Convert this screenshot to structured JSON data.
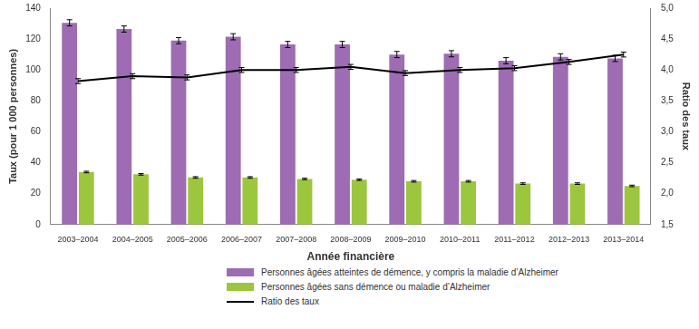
{
  "chart_data": {
    "type": "bar",
    "x_label": "Année financière",
    "y_label": "Taux (pour 1 000 personnes)",
    "y2_label": "Ratio des taux",
    "categories": [
      "2003–2004",
      "2004–2005",
      "2005–2006",
      "2006–2007",
      "2007–2008",
      "2008–2009",
      "2009–2010",
      "2010–2011",
      "2011–2012",
      "2012–2013",
      "2013–2014"
    ],
    "series": [
      {
        "name": "Personnes âgées atteintes de démence, y compris la maladie d’Alzheimer",
        "type": "bar",
        "color": "#9d6cb2",
        "values": [
          130.5,
          126.5,
          119,
          121.5,
          116.5,
          116.5,
          110,
          110.5,
          106,
          108.5,
          107.5
        ],
        "errors": [
          2,
          2,
          2,
          2,
          2,
          2,
          2,
          2,
          2,
          2,
          2
        ]
      },
      {
        "name": "Personnes âgées sans démence ou maladie d’Alzheimer",
        "type": "bar",
        "color": "#9cc63e",
        "values": [
          34,
          32.5,
          30.5,
          30.5,
          29.5,
          29,
          28,
          28,
          26.5,
          26.5,
          25
        ],
        "errors": [
          0.5,
          0.5,
          0.5,
          0.5,
          0.5,
          0.5,
          0.5,
          0.5,
          0.5,
          0.5,
          0.5
        ]
      },
      {
        "name": "Ratio des taux",
        "type": "line",
        "axis": "y2",
        "color": "#000000",
        "values": [
          3.82,
          3.9,
          3.88,
          4.0,
          4.0,
          4.05,
          3.95,
          4.0,
          4.03,
          4.13,
          4.25
        ],
        "errors": [
          0.04,
          0.04,
          0.04,
          0.04,
          0.04,
          0.04,
          0.04,
          0.04,
          0.04,
          0.04,
          0.04
        ]
      }
    ],
    "ylim": [
      0,
      140
    ],
    "yticks": [
      0,
      20,
      40,
      60,
      80,
      100,
      120,
      140
    ],
    "y2lim": [
      1.5,
      5.0
    ],
    "y2ticks": [
      {
        "value": 1.5,
        "label": "1,5"
      },
      {
        "value": 2.0,
        "label": "2,0"
      },
      {
        "value": 2.5,
        "label": "2,5"
      },
      {
        "value": 3.0,
        "label": "3,0"
      },
      {
        "value": 3.5,
        "label": "3,5"
      },
      {
        "value": 4.0,
        "label": "4,0"
      },
      {
        "value": 4.5,
        "label": "4,5"
      },
      {
        "value": 5.0,
        "label": "5,0"
      }
    ],
    "grid": false,
    "legend": "bottom"
  }
}
